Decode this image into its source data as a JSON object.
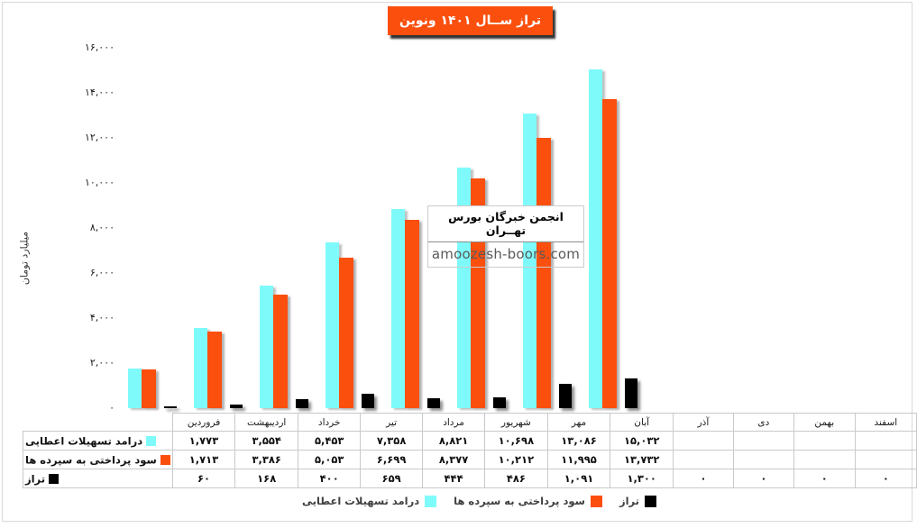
{
  "title": {
    "text": "تراز ســال ۱۴۰۱ ونوین",
    "bg_color": "#FB4F0E",
    "text_color": "#FFFFFF"
  },
  "y_axis": {
    "title": "میلیارد تومان",
    "ticks": [
      {
        "value": 16000,
        "label": "۱۶,۰۰۰"
      },
      {
        "value": 14000,
        "label": "۱۴,۰۰۰"
      },
      {
        "value": 12000,
        "label": "۱۲,۰۰۰"
      },
      {
        "value": 10000,
        "label": "۱۰,۰۰۰"
      },
      {
        "value": 8000,
        "label": "۸,۰۰۰"
      },
      {
        "value": 6000,
        "label": "۶,۰۰۰"
      },
      {
        "value": 4000,
        "label": "۴,۰۰۰"
      },
      {
        "value": 2000,
        "label": "۲,۰۰۰"
      },
      {
        "value": 0,
        "label": "۰"
      }
    ]
  },
  "watermark": {
    "line1": "انجمن خبرگان بورس تهــران",
    "line2": "amoozesh-boors.com"
  },
  "table": {
    "month_headers": [
      "فروردین",
      "اردیبهشت",
      "خرداد",
      "تیر",
      "مرداد",
      "شهریور",
      "مهر",
      "آبان",
      "آذر",
      "دی",
      "بهمن",
      "اسفند"
    ],
    "rows": [
      {
        "label": "درامد تسهیلات اعطایی",
        "key_color": "#7FFAFA",
        "values": [
          "۱,۷۷۳",
          "۳,۵۵۴",
          "۵,۴۵۳",
          "۷,۳۵۸",
          "۸,۸۲۱",
          "۱۰,۶۹۸",
          "۱۳,۰۸۶",
          "۱۵,۰۳۲",
          "",
          "",
          "",
          ""
        ]
      },
      {
        "label": "سود پرداختی به سپرده ها",
        "key_color": "#FB4F0E",
        "values": [
          "۱,۷۱۳",
          "۳,۳۸۶",
          "۵,۰۵۳",
          "۶,۶۹۹",
          "۸,۳۷۷",
          "۱۰,۲۱۲",
          "۱۱,۹۹۵",
          "۱۳,۷۳۲",
          "",
          "",
          "",
          ""
        ]
      },
      {
        "label": "تراز",
        "key_color": "#000000",
        "values": [
          "۶۰",
          "۱۶۸",
          "۴۰۰",
          "۶۵۹",
          "۴۴۴",
          "۴۸۶",
          "۱,۰۹۱",
          "۱,۳۰۰",
          "۰",
          "۰",
          "۰",
          "۰"
        ]
      }
    ]
  },
  "legend": {
    "items": [
      {
        "label": "درامد تسهیلات اعطایی",
        "color": "#7FFAFA"
      },
      {
        "label": "سود پرداختی به سپرده ها",
        "color": "#FB4F0E"
      },
      {
        "label": "تراز",
        "color": "#000000"
      }
    ]
  },
  "chart_data": {
    "type": "bar",
    "title": "تراز ســال ۱۴۰۱ ونوین",
    "xlabel": "",
    "ylabel": "میلیارد تومان",
    "categories": [
      "فروردین",
      "اردیبهشت",
      "خرداد",
      "تیر",
      "مرداد",
      "شهریور",
      "مهر",
      "آبان",
      "آذر",
      "دی",
      "بهمن",
      "اسفند"
    ],
    "series": [
      {
        "name": "درامد تسهیلات اعطایی",
        "color": "#7FFAFA",
        "values": [
          1773,
          3554,
          5453,
          7358,
          8821,
          10698,
          13086,
          15032,
          null,
          null,
          null,
          null
        ]
      },
      {
        "name": "سود پرداختی به سپرده ها",
        "color": "#FB4F0E",
        "values": [
          1713,
          3386,
          5053,
          6699,
          8377,
          10212,
          11995,
          13732,
          null,
          null,
          null,
          null
        ]
      },
      {
        "name": "تراز",
        "color": "#000000",
        "values": [
          60,
          168,
          400,
          659,
          444,
          486,
          1091,
          1300,
          0,
          0,
          0,
          0
        ]
      }
    ],
    "ylim": [
      0,
      16000
    ],
    "ytick_step": 2000,
    "grid": false,
    "legend_position": "bottom",
    "rtl": true
  }
}
